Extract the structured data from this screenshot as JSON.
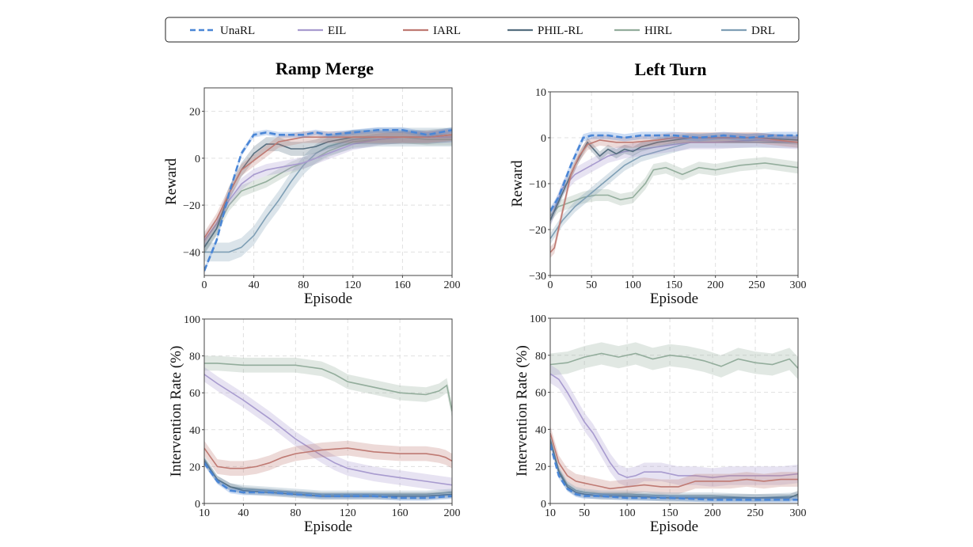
{
  "legend": {
    "items": [
      {
        "label": "UnaRL",
        "color": "#4a86d6",
        "dash": true
      },
      {
        "label": "EIL",
        "color": "#a89bcf",
        "dash": false
      },
      {
        "label": "IARL",
        "color": "#bf7a73",
        "dash": false
      },
      {
        "label": "PHIL-RL",
        "color": "#566f80",
        "dash": false
      },
      {
        "label": "HIRL",
        "color": "#93ad9c",
        "dash": false
      },
      {
        "label": "DRL",
        "color": "#7f9fb5",
        "dash": false
      }
    ]
  },
  "chart_data": [
    {
      "type": "line",
      "title": "Ramp Merge",
      "xlabel": "Episode",
      "ylabel": "Reward",
      "xlim": [
        0,
        200
      ],
      "ylim": [
        -50,
        30
      ],
      "xticks": [
        0,
        40,
        80,
        120,
        160,
        200
      ],
      "xtick_labels": [
        "0",
        "40",
        "80",
        "120",
        "160",
        "200"
      ],
      "yticks": [
        -40,
        -20,
        0,
        20
      ],
      "ytick_labels": [
        "−40",
        "−20",
        "0",
        "20"
      ],
      "grid": true,
      "series": [
        {
          "name": "DRL",
          "x": [
            0,
            10,
            20,
            30,
            40,
            50,
            60,
            70,
            80,
            90,
            100,
            120,
            140,
            160,
            180,
            200
          ],
          "y": [
            -40,
            -40,
            -40,
            -38,
            -33,
            -25,
            -18,
            -10,
            -3,
            2,
            5,
            8,
            9,
            9,
            9,
            9
          ],
          "band": 4
        },
        {
          "name": "HIRL",
          "x": [
            0,
            10,
            20,
            30,
            40,
            50,
            60,
            70,
            80,
            90,
            100,
            120,
            140,
            160,
            180,
            200
          ],
          "y": [
            -38,
            -30,
            -20,
            -14,
            -12,
            -10,
            -7,
            -4,
            -2,
            0,
            3,
            7,
            8,
            9,
            8,
            8
          ],
          "band": 2.5
        },
        {
          "name": "EIL",
          "x": [
            0,
            10,
            20,
            30,
            40,
            50,
            60,
            70,
            80,
            90,
            100,
            120,
            140,
            160,
            180,
            200
          ],
          "y": [
            -35,
            -28,
            -18,
            -11,
            -7,
            -5,
            -4,
            -3,
            -2,
            0,
            2,
            6,
            8,
            9,
            9,
            9
          ],
          "band": 2.5
        },
        {
          "name": "PHIL-RL",
          "x": [
            0,
            10,
            20,
            30,
            40,
            50,
            60,
            70,
            80,
            90,
            100,
            120,
            140,
            160,
            180,
            200
          ],
          "y": [
            -38,
            -30,
            -15,
            -5,
            2,
            6,
            6,
            4,
            4,
            5,
            7,
            9,
            9,
            9,
            9,
            10
          ],
          "band": 3
        },
        {
          "name": "IARL",
          "x": [
            0,
            10,
            20,
            30,
            40,
            50,
            60,
            70,
            80,
            90,
            100,
            120,
            140,
            160,
            180,
            200
          ],
          "y": [
            -34,
            -26,
            -15,
            -5,
            -1,
            3,
            7,
            8,
            9,
            9,
            9,
            9,
            9,
            9,
            9,
            10
          ],
          "band": 2.5
        },
        {
          "name": "UnaRL",
          "x": [
            0,
            10,
            20,
            30,
            40,
            50,
            60,
            70,
            80,
            90,
            100,
            120,
            140,
            160,
            180,
            200
          ],
          "y": [
            -48,
            -35,
            -15,
            2,
            10,
            11,
            10,
            10,
            10,
            11,
            10,
            11,
            12,
            12,
            10,
            12
          ],
          "band": 1.2
        }
      ]
    },
    {
      "type": "line",
      "title": "Left Turn",
      "xlabel": "Episode",
      "ylabel": "Reward",
      "xlim": [
        0,
        300
      ],
      "ylim": [
        -30,
        10
      ],
      "xticks": [
        0,
        50,
        100,
        150,
        200,
        250,
        300
      ],
      "xtick_labels": [
        "0",
        "50",
        "100",
        "150",
        "200",
        "250",
        "300"
      ],
      "yticks": [
        -30,
        -20,
        -10,
        0,
        10
      ],
      "ytick_labels": [
        "−30",
        "−20",
        "−10",
        "0",
        "10"
      ],
      "grid": true,
      "series": [
        {
          "name": "HIRL",
          "x": [
            0,
            10,
            25,
            40,
            55,
            70,
            85,
            100,
            115,
            125,
            140,
            160,
            180,
            200,
            230,
            260,
            300
          ],
          "y": [
            -17,
            -15,
            -14,
            -13,
            -12.5,
            -12.5,
            -13.5,
            -13,
            -10,
            -7,
            -6.5,
            -8,
            -6.5,
            -7,
            -6,
            -5.5,
            -6.5
          ],
          "band": 1.3
        },
        {
          "name": "DRL",
          "x": [
            0,
            15,
            30,
            50,
            70,
            90,
            110,
            130,
            150,
            170,
            200,
            250,
            300
          ],
          "y": [
            -22,
            -18,
            -15,
            -12,
            -9,
            -6,
            -4,
            -3,
            -2,
            -1,
            -1,
            -1,
            -1
          ],
          "band": 1.2
        },
        {
          "name": "EIL",
          "x": [
            0,
            15,
            30,
            50,
            70,
            90,
            110,
            130,
            150,
            170,
            200,
            250,
            300
          ],
          "y": [
            -18,
            -11,
            -8,
            -6,
            -4,
            -3,
            -2.5,
            -2,
            -1.5,
            -1,
            -1,
            -0.5,
            -1
          ],
          "band": 1.5
        },
        {
          "name": "PHIL-RL",
          "x": [
            0,
            15,
            30,
            45,
            50,
            60,
            70,
            80,
            90,
            100,
            110,
            120,
            130,
            150,
            170,
            200,
            250,
            300
          ],
          "y": [
            -18,
            -12,
            -6,
            -1,
            -2,
            -4,
            -2.5,
            -3.5,
            -2.5,
            -3,
            -2,
            -1.5,
            -1,
            -0.5,
            0,
            0,
            0,
            -0.5
          ],
          "band": 1
        },
        {
          "name": "IARL",
          "x": [
            0,
            5,
            15,
            25,
            35,
            45,
            60,
            80,
            100,
            130,
            150,
            200,
            250,
            300
          ],
          "y": [
            -25,
            -24,
            -16,
            -8,
            -4,
            -1.5,
            -0.5,
            -1,
            -1,
            -0.5,
            0,
            0,
            0,
            -1
          ],
          "band": 1.2
        },
        {
          "name": "UnaRL",
          "x": [
            0,
            10,
            25,
            40,
            50,
            70,
            90,
            110,
            130,
            150,
            180,
            210,
            240,
            270,
            300
          ],
          "y": [
            -16,
            -13,
            -6,
            0,
            0.5,
            0.5,
            0,
            0.5,
            0.5,
            0.5,
            0,
            0.5,
            0,
            0.5,
            0.5
          ],
          "band": 0.8
        }
      ]
    },
    {
      "type": "line",
      "title": "",
      "xlabel": "Episode",
      "ylabel": "Intervention  Rate (%)",
      "xlim": [
        10,
        200
      ],
      "ylim": [
        0,
        100
      ],
      "xticks": [
        10,
        40,
        80,
        120,
        160,
        200
      ],
      "xtick_labels": [
        "10",
        "40",
        "80",
        "120",
        "160",
        "200"
      ],
      "yticks": [
        0,
        20,
        40,
        60,
        80,
        100
      ],
      "ytick_labels": [
        "0",
        "20",
        "40",
        "60",
        "80",
        "100"
      ],
      "grid": true,
      "series": [
        {
          "name": "HIRL",
          "x": [
            10,
            20,
            40,
            60,
            80,
            100,
            110,
            120,
            140,
            160,
            180,
            190,
            196,
            200
          ],
          "y": [
            76,
            76,
            75,
            75,
            75,
            73,
            70,
            66,
            63,
            60,
            59,
            61,
            64,
            50
          ],
          "band": 4
        },
        {
          "name": "EIL",
          "x": [
            10,
            20,
            40,
            60,
            80,
            100,
            110,
            120,
            140,
            160,
            180,
            200
          ],
          "y": [
            70,
            65,
            56,
            46,
            35,
            26,
            22,
            19,
            16,
            14,
            12,
            10
          ],
          "band": 4
        },
        {
          "name": "IARL",
          "x": [
            10,
            15,
            20,
            30,
            40,
            50,
            60,
            70,
            80,
            100,
            120,
            140,
            160,
            180,
            190,
            195,
            200
          ],
          "y": [
            30,
            25,
            20,
            19,
            19,
            20,
            22,
            25,
            27,
            29,
            30,
            28,
            27,
            27,
            26,
            25,
            23
          ],
          "band": 4
        },
        {
          "name": "DRL",
          "x": [
            10,
            20,
            30,
            40,
            60,
            80,
            100,
            120,
            140,
            160,
            180,
            200
          ],
          "y": [
            24,
            13,
            9,
            8,
            7,
            6,
            5,
            5,
            5,
            5,
            5,
            6
          ],
          "band": 2
        },
        {
          "name": "PHIL-RL",
          "x": [
            10,
            20,
            30,
            40,
            60,
            80,
            100,
            120,
            140,
            160,
            180,
            200
          ],
          "y": [
            23,
            13,
            9,
            7,
            6,
            5,
            4,
            4,
            4,
            4,
            4,
            5
          ],
          "band": 2
        },
        {
          "name": "UnaRL",
          "x": [
            10,
            20,
            30,
            40,
            60,
            80,
            100,
            120,
            140,
            160,
            180,
            200
          ],
          "y": [
            22,
            12,
            7,
            6,
            6,
            5,
            4,
            4,
            4,
            3,
            3,
            4
          ],
          "band": 1.5
        }
      ]
    },
    {
      "type": "line",
      "title": "",
      "xlabel": "Episode",
      "ylabel": "Intervention  Rate (%)",
      "xlim": [
        10,
        300
      ],
      "ylim": [
        0,
        100
      ],
      "xticks": [
        10,
        50,
        100,
        150,
        200,
        250,
        300
      ],
      "xtick_labels": [
        "10",
        "50",
        "100",
        "150",
        "200",
        "250",
        "300"
      ],
      "yticks": [
        0,
        20,
        40,
        60,
        80,
        100
      ],
      "ytick_labels": [
        "0",
        "20",
        "40",
        "60",
        "80",
        "100"
      ],
      "grid": true,
      "series": [
        {
          "name": "HIRL",
          "x": [
            10,
            30,
            50,
            70,
            90,
            110,
            130,
            150,
            170,
            190,
            210,
            230,
            250,
            270,
            290,
            300
          ],
          "y": [
            75,
            76,
            79,
            81,
            79,
            81,
            78,
            80,
            79,
            77,
            74,
            78,
            76,
            75,
            78,
            73
          ],
          "band": 6
        },
        {
          "name": "EIL",
          "x": [
            10,
            20,
            30,
            40,
            50,
            60,
            70,
            80,
            90,
            100,
            110,
            120,
            140,
            160,
            180,
            200,
            220,
            240,
            260,
            280,
            300
          ],
          "y": [
            70,
            67,
            60,
            52,
            44,
            38,
            30,
            22,
            16,
            14,
            15,
            17,
            17,
            15,
            15,
            14,
            15,
            15,
            15,
            15,
            16
          ],
          "band": 5
        },
        {
          "name": "IARL",
          "x": [
            10,
            20,
            30,
            40,
            50,
            60,
            70,
            80,
            100,
            120,
            140,
            160,
            180,
            200,
            220,
            240,
            260,
            280,
            300
          ],
          "y": [
            38,
            22,
            15,
            12,
            11,
            10,
            9,
            8,
            9,
            10,
            9,
            9,
            12,
            12,
            12,
            13,
            12,
            13,
            13
          ],
          "band": 4
        },
        {
          "name": "DRL",
          "x": [
            10,
            20,
            30,
            40,
            50,
            70,
            100,
            150,
            200,
            250,
            300
          ],
          "y": [
            35,
            18,
            10,
            7,
            6,
            5,
            5,
            4,
            4,
            3,
            4
          ],
          "band": 2
        },
        {
          "name": "PHIL-RL",
          "x": [
            10,
            20,
            30,
            40,
            50,
            70,
            100,
            150,
            200,
            250,
            290,
            300
          ],
          "y": [
            34,
            17,
            9,
            6,
            5,
            4,
            4,
            3,
            3,
            3,
            3,
            5
          ],
          "band": 2
        },
        {
          "name": "UnaRL",
          "x": [
            10,
            20,
            30,
            40,
            50,
            70,
            100,
            150,
            200,
            250,
            300
          ],
          "y": [
            32,
            15,
            8,
            5,
            4,
            4,
            3,
            3,
            2,
            2,
            2
          ],
          "band": 1.5
        }
      ]
    }
  ]
}
